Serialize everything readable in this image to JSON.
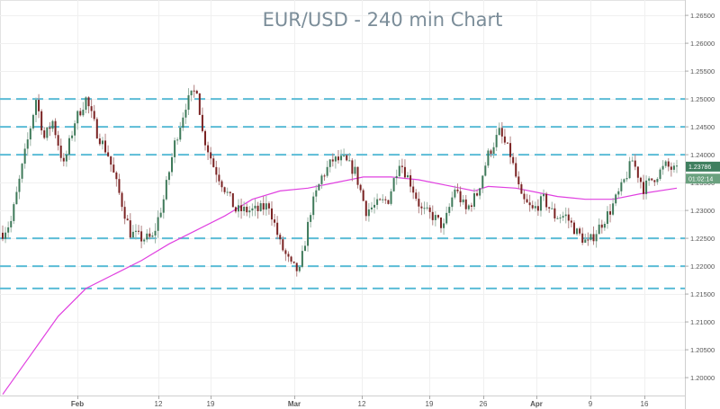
{
  "title": "EUR/USD - 240 min Chart",
  "chart_data": {
    "type": "candlestick",
    "title": "EUR/USD - 240 min Chart",
    "y_axis": {
      "side": "right",
      "range": [
        1.1955,
        1.2655
      ],
      "ticks": [
        "1.26500",
        "1.26000",
        "1.25500",
        "1.25000",
        "1.24500",
        "1.24000",
        "1.23500",
        "1.23000",
        "1.22500",
        "1.22000",
        "1.21500",
        "1.21000",
        "1.20500",
        "1.20000"
      ],
      "tick_values": [
        1.265,
        1.26,
        1.255,
        1.25,
        1.245,
        1.24,
        1.235,
        1.23,
        1.225,
        1.22,
        1.215,
        1.21,
        1.205,
        1.2
      ]
    },
    "x_axis": {
      "labels": [
        "Feb",
        "12",
        "19",
        "Mar",
        "12",
        "19",
        "26",
        "Apr",
        "9",
        "16"
      ],
      "bold_labels": [
        "Feb",
        "Mar",
        "Apr"
      ]
    },
    "grid": true,
    "horizontal_levels": [
      1.25,
      1.245,
      1.24,
      1.225,
      1.22,
      1.216
    ],
    "level_color": "#5bbcd6",
    "moving_average_color": "#e040e0",
    "badges": [
      {
        "label": "1.23786",
        "value": 1.23786,
        "color": "#3f7f5f"
      },
      {
        "label": "01:02:14",
        "value": 1.2357,
        "color": "#6aa17f"
      }
    ],
    "anchors": [
      [
        0,
        1.226
      ],
      [
        3,
        1.228
      ],
      [
        10,
        1.245
      ],
      [
        12,
        1.25
      ],
      [
        15,
        1.243
      ],
      [
        18,
        1.246
      ],
      [
        22,
        1.238
      ],
      [
        26,
        1.246
      ],
      [
        30,
        1.25
      ],
      [
        34,
        1.244
      ],
      [
        38,
        1.24
      ],
      [
        42,
        1.233
      ],
      [
        46,
        1.226
      ],
      [
        50,
        1.225
      ],
      [
        54,
        1.225
      ],
      [
        58,
        1.232
      ],
      [
        62,
        1.242
      ],
      [
        66,
        1.249
      ],
      [
        70,
        1.252
      ],
      [
        72,
        1.244
      ],
      [
        76,
        1.238
      ],
      [
        80,
        1.234
      ],
      [
        84,
        1.23
      ],
      [
        88,
        1.23
      ],
      [
        92,
        1.23
      ],
      [
        96,
        1.231
      ],
      [
        100,
        1.224
      ],
      [
        104,
        1.22
      ],
      [
        107,
        1.219
      ],
      [
        111,
        1.23
      ],
      [
        115,
        1.236
      ],
      [
        119,
        1.239
      ],
      [
        123,
        1.239
      ],
      [
        127,
        1.237
      ],
      [
        131,
        1.23
      ],
      [
        135,
        1.231
      ],
      [
        139,
        1.232
      ],
      [
        143,
        1.239
      ],
      [
        147,
        1.235
      ],
      [
        151,
        1.23
      ],
      [
        155,
        1.229
      ],
      [
        159,
        1.227
      ],
      [
        163,
        1.234
      ],
      [
        167,
        1.23
      ],
      [
        171,
        1.233
      ],
      [
        175,
        1.24
      ],
      [
        179,
        1.244
      ],
      [
        183,
        1.24
      ],
      [
        187,
        1.232
      ],
      [
        191,
        1.23
      ],
      [
        195,
        1.232
      ],
      [
        199,
        1.229
      ],
      [
        203,
        1.229
      ],
      [
        207,
        1.226
      ],
      [
        211,
        1.224
      ],
      [
        215,
        1.227
      ],
      [
        219,
        1.23
      ],
      [
        223,
        1.234
      ],
      [
        227,
        1.239
      ],
      [
        231,
        1.234
      ],
      [
        235,
        1.236
      ],
      [
        239,
        1.238
      ],
      [
        243,
        1.237
      ]
    ],
    "moving_average": [
      [
        0,
        1.197
      ],
      [
        10,
        1.204
      ],
      [
        20,
        1.211
      ],
      [
        30,
        1.216
      ],
      [
        40,
        1.2185
      ],
      [
        50,
        1.221
      ],
      [
        60,
        1.224
      ],
      [
        70,
        1.2265
      ],
      [
        80,
        1.229
      ],
      [
        90,
        1.232
      ],
      [
        100,
        1.2335
      ],
      [
        110,
        1.234
      ],
      [
        120,
        1.235
      ],
      [
        130,
        1.236
      ],
      [
        140,
        1.236
      ],
      [
        150,
        1.2355
      ],
      [
        160,
        1.2345
      ],
      [
        170,
        1.2335
      ],
      [
        175,
        1.2343
      ],
      [
        185,
        1.234
      ],
      [
        195,
        1.233
      ],
      [
        200,
        1.2325
      ],
      [
        210,
        1.232
      ],
      [
        220,
        1.232
      ],
      [
        230,
        1.233
      ],
      [
        243,
        1.234
      ]
    ],
    "candle_count": 244
  }
}
